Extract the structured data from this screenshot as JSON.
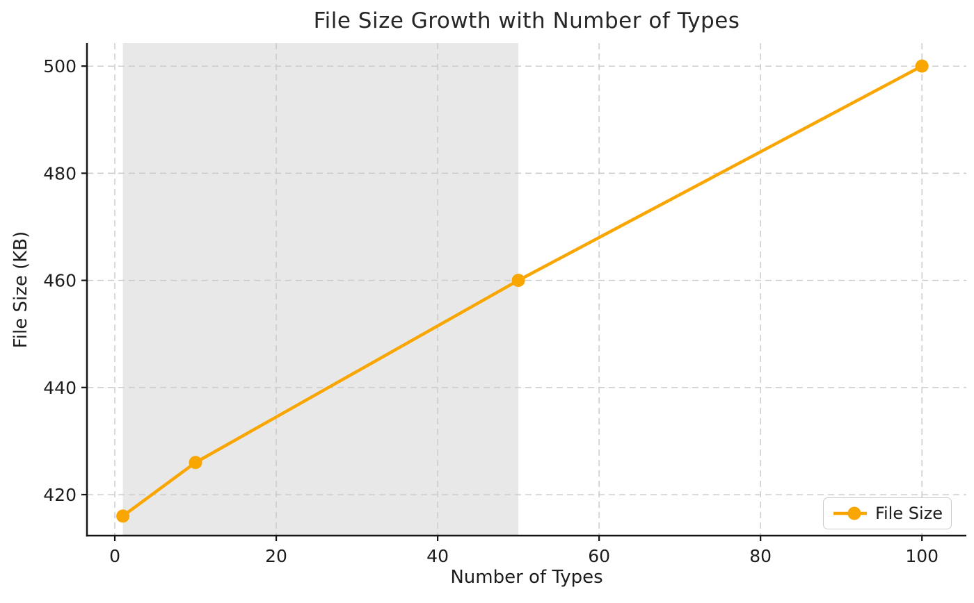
{
  "chart_data": {
    "type": "line",
    "title": "File Size Growth with Number of Types",
    "xlabel": "Number of Types",
    "ylabel": "File Size (KB)",
    "x": [
      1,
      10,
      50,
      100
    ],
    "series": [
      {
        "name": "File Size",
        "values": [
          416,
          426,
          460,
          500
        ]
      }
    ],
    "xticks": [
      0,
      20,
      40,
      60,
      80,
      100
    ],
    "yticks": [
      420,
      440,
      460,
      480,
      500
    ],
    "xlim": [
      -3.45,
      105.5
    ],
    "ylim": [
      412.35,
      504.3
    ],
    "grid": true,
    "grid_style": "dashed",
    "legend": {
      "label": "File Size",
      "position": "lower-right"
    },
    "shaded_region": {
      "x_start": 1,
      "x_end": 50
    }
  },
  "colors": {
    "line": "#F9A602",
    "marker": "#F9A602",
    "grid": "#c9c9c9",
    "shade": "#e8e8e8",
    "spine": "#141414",
    "tick_label": "#1c1c1c",
    "legend_border": "#cccccc"
  }
}
